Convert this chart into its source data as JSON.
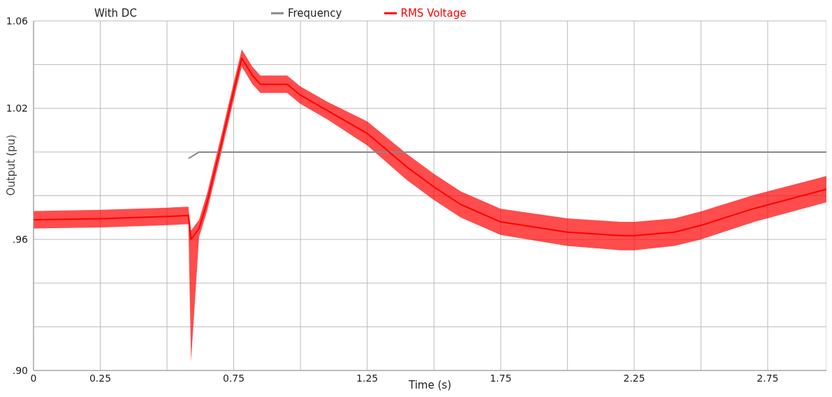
{
  "chart_data": {
    "type": "line",
    "title": "With DC",
    "xlabel": "Time (s)",
    "ylabel": "Output (pu)",
    "legend": "top",
    "grid": true,
    "marker": "none",
    "line_style": "solid",
    "xlim": [
      0,
      2.97
    ],
    "ylim": [
      0.9,
      1.06
    ],
    "xticks": [
      0,
      0.25,
      {
        "value": 0.5,
        "label": null
      },
      0.75,
      {
        "value": 1.0,
        "label": null
      },
      1.25,
      {
        "value": 1.5,
        "label": null
      },
      1.75,
      {
        "value": 2.0,
        "label": null
      },
      2.25,
      {
        "value": 2.5,
        "label": null
      },
      2.75
    ],
    "yticks": [
      {
        "value": 0.9,
        "label": ".90"
      },
      {
        "value": 0.92,
        "label": null
      },
      {
        "value": 0.94,
        "label": null
      },
      {
        "value": 0.96,
        "label": ".96"
      },
      {
        "value": 0.98,
        "label": null
      },
      {
        "value": 1.0,
        "label": null
      },
      1.02,
      {
        "value": 1.04,
        "label": null
      },
      1.06
    ],
    "series": [
      {
        "name": "Frequency",
        "color": "#888888",
        "x": [
          0.58,
          0.6,
          0.62,
          1.0,
          1.5,
          2.0,
          2.5,
          2.97
        ],
        "values": [
          0.997,
          0.9985,
          1.0,
          1.0,
          1.0,
          1.0,
          1.0,
          1.0
        ]
      },
      {
        "name": "RMS Voltage",
        "color": "#ff0000",
        "x": [
          0,
          0.25,
          0.5,
          0.58,
          0.59,
          0.62,
          0.65,
          0.7,
          0.75,
          0.78,
          0.82,
          0.85,
          0.95,
          1.0,
          1.1,
          1.25,
          1.4,
          1.5,
          1.6,
          1.75,
          2.0,
          2.2,
          2.25,
          2.4,
          2.5,
          2.7,
          2.97
        ],
        "values": [
          0.969,
          0.9695,
          0.9705,
          0.971,
          0.96,
          0.965,
          0.977,
          1.002,
          1.028,
          1.043,
          1.035,
          1.031,
          1.031,
          1.026,
          1.019,
          1.0085,
          0.993,
          0.984,
          0.976,
          0.968,
          0.9633,
          0.9617,
          0.9617,
          0.9633,
          0.9664,
          0.9742,
          0.983
        ],
        "lower": [
          0.965,
          0.9655,
          0.9665,
          0.967,
          0.904,
          0.961,
          0.973,
          0.998,
          1.024,
          1.039,
          1.031,
          1.027,
          1.027,
          1.022,
          1.015,
          1.003,
          0.987,
          0.978,
          0.97,
          0.962,
          0.957,
          0.955,
          0.955,
          0.957,
          0.96,
          0.968,
          0.977
        ],
        "upper": [
          0.973,
          0.9735,
          0.9745,
          0.975,
          0.964,
          0.969,
          0.981,
          1.006,
          1.032,
          1.047,
          1.039,
          1.035,
          1.035,
          1.03,
          1.023,
          1.014,
          0.999,
          0.99,
          0.982,
          0.974,
          0.9696,
          0.968,
          0.968,
          0.9696,
          0.9728,
          0.9804,
          0.989
        ]
      }
    ]
  }
}
